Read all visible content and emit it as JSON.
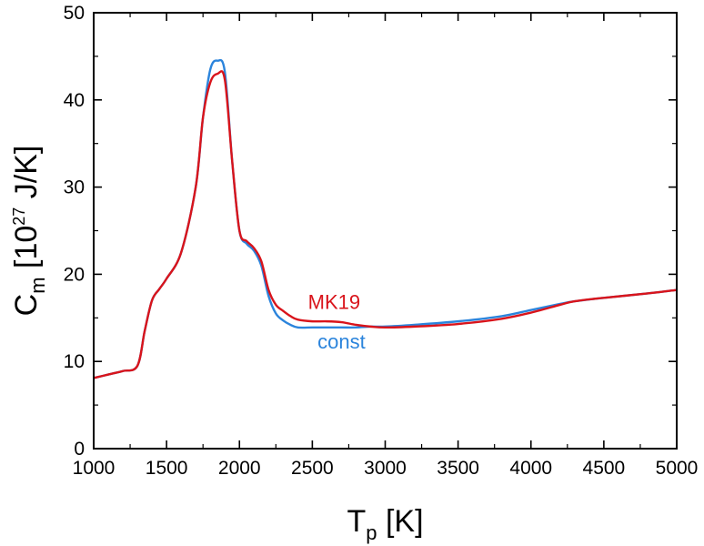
{
  "chart_data": {
    "type": "line",
    "xlabel": {
      "main": "T",
      "sub": "p",
      "unit": " [K]"
    },
    "ylabel": {
      "main": "C",
      "sub": "m",
      "pre": " [10",
      "sup": "27",
      "post": " J/K]"
    },
    "xlim": [
      1000,
      5000
    ],
    "ylim": [
      0,
      50
    ],
    "xticks": [
      "1000",
      "1500",
      "2000",
      "2500",
      "3000",
      "3500",
      "4000",
      "4500",
      "5000"
    ],
    "yticks": [
      "0",
      "10",
      "20",
      "30",
      "40",
      "50"
    ],
    "grid": false,
    "series": [
      {
        "name": "const",
        "color": "#2b84dc",
        "label_at": [
          2700,
          11.5
        ],
        "x": [
          1000,
          1100,
          1200,
          1300,
          1350,
          1400,
          1450,
          1500,
          1600,
          1700,
          1750,
          1800,
          1850,
          1900,
          1950,
          2000,
          2050,
          2100,
          2150,
          2200,
          2250,
          2300,
          2350,
          2400,
          2500,
          2600,
          2700,
          2800,
          2900,
          3000,
          3200,
          3500,
          3800,
          4000,
          4200,
          4300,
          4500,
          4800,
          5000
        ],
        "y": [
          8.1,
          8.5,
          8.9,
          9.5,
          13.5,
          17.0,
          18.3,
          19.5,
          22.5,
          30.0,
          38.0,
          43.5,
          44.5,
          43.2,
          33.0,
          25.0,
          23.5,
          22.7,
          21.0,
          17.5,
          15.5,
          14.7,
          14.2,
          13.9,
          13.9,
          13.9,
          13.9,
          13.9,
          14.0,
          14.0,
          14.2,
          14.6,
          15.2,
          15.9,
          16.6,
          16.9,
          17.3,
          17.8,
          18.2
        ]
      },
      {
        "name": "MK19",
        "color": "#d9141b",
        "label_at": [
          2650,
          16.0
        ],
        "x": [
          1000,
          1100,
          1200,
          1300,
          1350,
          1400,
          1450,
          1500,
          1600,
          1700,
          1750,
          1800,
          1850,
          1900,
          1950,
          2000,
          2050,
          2100,
          2150,
          2200,
          2250,
          2300,
          2350,
          2400,
          2500,
          2600,
          2700,
          2800,
          2900,
          3000,
          3200,
          3500,
          3800,
          4000,
          4200,
          4300,
          4500,
          4800,
          5000
        ],
        "y": [
          8.1,
          8.5,
          8.9,
          9.5,
          13.5,
          17.0,
          18.3,
          19.5,
          22.5,
          30.0,
          38.0,
          42.0,
          43.0,
          42.3,
          33.0,
          25.0,
          23.8,
          23.0,
          21.5,
          18.2,
          16.5,
          15.8,
          15.2,
          14.8,
          14.6,
          14.6,
          14.5,
          14.2,
          14.0,
          13.9,
          14.0,
          14.3,
          14.9,
          15.6,
          16.5,
          16.9,
          17.3,
          17.8,
          18.2
        ]
      }
    ]
  }
}
